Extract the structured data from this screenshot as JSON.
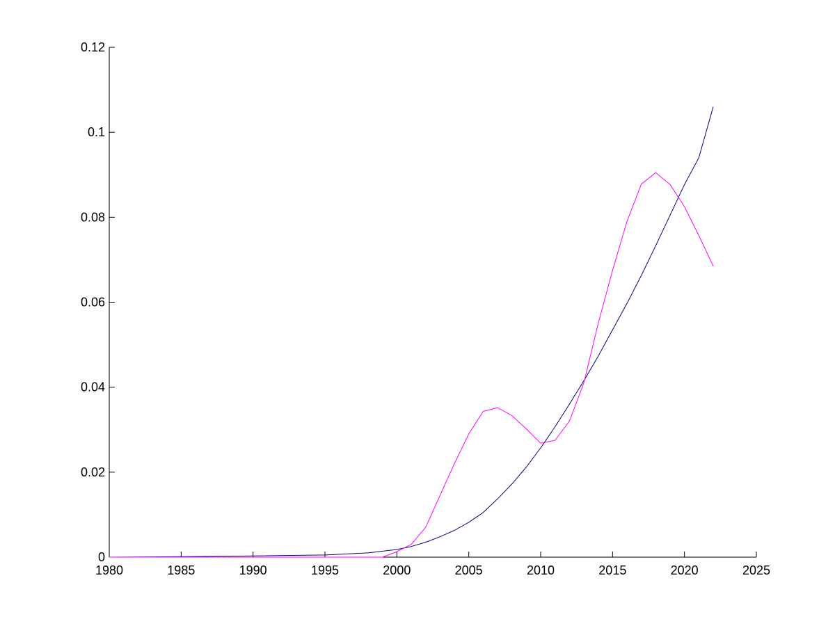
{
  "chart_data": {
    "type": "line",
    "title": "",
    "xlabel": "",
    "ylabel": "",
    "xlim": [
      1980,
      2025
    ],
    "ylim": [
      0,
      0.12
    ],
    "grid": false,
    "legend": "none",
    "x_ticks": [
      1980,
      1985,
      1990,
      1995,
      2000,
      2005,
      2010,
      2015,
      2020,
      2025
    ],
    "x_tick_labels": [
      "1980",
      "1985",
      "1990",
      "1995",
      "2000",
      "2005",
      "2010",
      "2015",
      "2020",
      "2025"
    ],
    "y_ticks": [
      0,
      0.02,
      0.04,
      0.06,
      0.08,
      0.1,
      0.12
    ],
    "y_tick_labels": [
      "0",
      "0.02",
      "0.04",
      "0.06",
      "0.08",
      "0.1",
      "0.12"
    ],
    "series": [
      {
        "color": "#00007f",
        "x": [
          1980,
          1985,
          1990,
          1995,
          1998,
          2000,
          2001,
          2002,
          2003,
          2004,
          2005,
          2006,
          2007,
          2008,
          2009,
          2010,
          2011,
          2012,
          2013,
          2014,
          2015,
          2016,
          2017,
          2018,
          2019,
          2020,
          2021,
          2022
        ],
        "y": [
          0,
          0.0001,
          0.0003,
          0.0005,
          0.001,
          0.0018,
          0.0025,
          0.0035,
          0.0048,
          0.0063,
          0.0082,
          0.0105,
          0.0137,
          0.0172,
          0.0212,
          0.0257,
          0.0307,
          0.036,
          0.0415,
          0.0473,
          0.0535,
          0.0597,
          0.0663,
          0.0733,
          0.0805,
          0.0877,
          0.094,
          0.106
        ]
      },
      {
        "color": "#ff00ff",
        "x": [
          1980,
          1986,
          1999,
          2000,
          2001,
          2002,
          2003,
          2004,
          2005,
          2006,
          2007,
          2008,
          2009,
          2010,
          2011,
          2012,
          2013,
          2014,
          2015,
          2016,
          2017,
          2018,
          2019,
          2020,
          2021,
          2022
        ],
        "y": [
          0,
          0,
          0,
          0.0013,
          0.003,
          0.007,
          0.0145,
          0.022,
          0.029,
          0.0343,
          0.0352,
          0.0333,
          0.0302,
          0.0268,
          0.0275,
          0.032,
          0.041,
          0.055,
          0.0675,
          0.079,
          0.0878,
          0.0905,
          0.0877,
          0.0825,
          0.0757,
          0.0685
        ]
      }
    ]
  }
}
